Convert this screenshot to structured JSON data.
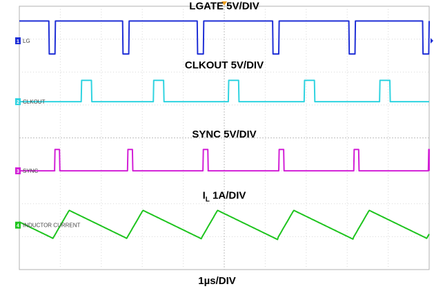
{
  "chart_data": {
    "type": "line",
    "title": "",
    "xlabel": "1µs/DIV",
    "xlim_divisions": [
      0,
      10
    ],
    "ylim_divisions": [
      0,
      8
    ],
    "grid": true,
    "channels": [
      {
        "name": "LG",
        "title": "LGATE 5V/DIV",
        "title_main": "LGATE 5V/DIV",
        "title_sub": "",
        "marker": "1",
        "color": "#1f2fd6",
        "ref_div": 6.95,
        "kind": "pulse_low",
        "high_div": 7.55,
        "low_div": 6.55,
        "x": [
          0.72,
          2.52,
          4.34,
          6.18,
          8.04,
          9.84
        ],
        "width_div": 0.15
      },
      {
        "name": "CLKOUT",
        "title": "CLKOUT 5V/DIV",
        "title_main": "CLKOUT 5V/DIV",
        "title_sub": "",
        "marker": "2",
        "color": "#2fd3e0",
        "ref_div": 5.1,
        "kind": "pulse_high",
        "high_div": 5.75,
        "low_div": 5.1,
        "x": [
          1.51,
          3.27,
          5.1,
          6.95,
          8.79,
          10.58
        ],
        "width_div": 0.25
      },
      {
        "name": "SYNC",
        "title": "SYNC 5V/DIV",
        "title_main": "SYNC 5V/DIV",
        "title_sub": "",
        "marker": "3",
        "color": "#d21fd6",
        "ref_div": 3.0,
        "kind": "pulse_high",
        "high_div": 3.65,
        "low_div": 3.0,
        "x": [
          0.86,
          2.64,
          4.48,
          6.33,
          8.16,
          9.98
        ],
        "width_div": 0.12
      },
      {
        "name": "INDUCTOR CURRENT",
        "title": "I L 1A/DIV",
        "title_main": "I",
        "title_sub": "L",
        "title_rest": " 1A/DIV",
        "marker": "4",
        "color": "#1ec41e",
        "ref_div": 1.35,
        "kind": "sawtooth",
        "min_div": 0.95,
        "max_div": 1.8,
        "x": [
          0.82,
          2.62,
          4.44,
          6.3,
          8.14,
          9.94
        ]
      }
    ]
  }
}
